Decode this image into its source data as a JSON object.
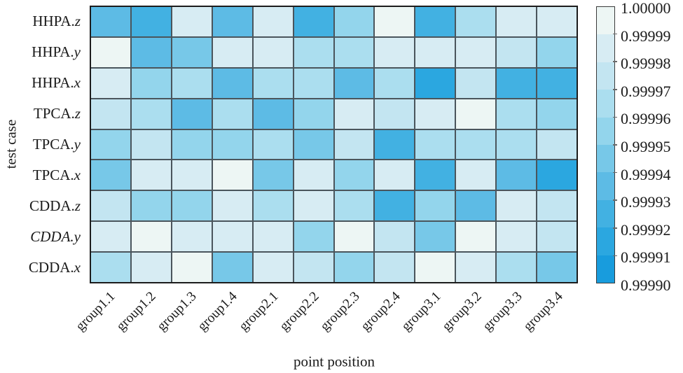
{
  "figure": {
    "x_axis_title": "point position",
    "y_axis_title": "test case"
  },
  "chart_data": {
    "type": "heatmap",
    "xlabel": "point position",
    "ylabel": "test case",
    "columns": [
      "group1.1",
      "group1.2",
      "group1.3",
      "group1.4",
      "group2.1",
      "group2.2",
      "group2.3",
      "group2.4",
      "group3.1",
      "group3.2",
      "group3.3",
      "group3.4"
    ],
    "rows": [
      {
        "label": "HHPA.z",
        "prefix": "HHPA.",
        "suffix": "z",
        "italic_full": false
      },
      {
        "label": "HHPA.y",
        "prefix": "HHPA.",
        "suffix": "y",
        "italic_full": false
      },
      {
        "label": "HHPA.x",
        "prefix": "HHPA.",
        "suffix": "x",
        "italic_full": false
      },
      {
        "label": "TPCA.z",
        "prefix": "TPCA.",
        "suffix": "z",
        "italic_full": false
      },
      {
        "label": "TPCA.y",
        "prefix": "TPCA.",
        "suffix": "y",
        "italic_full": false
      },
      {
        "label": "TPCA.x",
        "prefix": "TPCA.",
        "suffix": "x",
        "italic_full": false
      },
      {
        "label": "CDDA.z",
        "prefix": "CDDA.",
        "suffix": "z",
        "italic_full": false
      },
      {
        "label": "CDDA.y",
        "prefix": "CDDA.",
        "suffix": "y",
        "italic_full": true
      },
      {
        "label": "CDDA.x",
        "prefix": "CDDA.",
        "suffix": "x",
        "italic_full": false
      }
    ],
    "values": [
      [
        0.999935,
        0.999925,
        0.999985,
        0.999935,
        0.999985,
        0.999925,
        0.999955,
        0.999995,
        0.999925,
        0.999965,
        0.999985,
        0.999985
      ],
      [
        0.999995,
        0.999935,
        0.999945,
        0.999985,
        0.999985,
        0.999965,
        0.999965,
        0.999985,
        0.999985,
        0.999985,
        0.999975,
        0.999955
      ],
      [
        0.999985,
        0.999955,
        0.999965,
        0.999935,
        0.999965,
        0.999965,
        0.999935,
        0.999965,
        0.999915,
        0.999975,
        0.999925,
        0.999925
      ],
      [
        0.999975,
        0.999965,
        0.999935,
        0.999965,
        0.999935,
        0.999955,
        0.999985,
        0.999975,
        0.999985,
        0.999995,
        0.999965,
        0.999955
      ],
      [
        0.999955,
        0.999975,
        0.999955,
        0.999955,
        0.999965,
        0.999945,
        0.999975,
        0.999925,
        0.999965,
        0.999965,
        0.999965,
        0.999975
      ],
      [
        0.999945,
        0.999985,
        0.999985,
        0.999995,
        0.999945,
        0.999985,
        0.999955,
        0.999985,
        0.999925,
        0.999985,
        0.999935,
        0.999915
      ],
      [
        0.999975,
        0.999955,
        0.999955,
        0.999985,
        0.999965,
        0.999985,
        0.999965,
        0.999925,
        0.999955,
        0.999935,
        0.999985,
        0.999975
      ],
      [
        0.999985,
        0.999995,
        0.999985,
        0.999985,
        0.999985,
        0.999955,
        0.999995,
        0.999975,
        0.999945,
        0.999995,
        0.999985,
        0.999975
      ],
      [
        0.999965,
        0.999985,
        0.999995,
        0.999945,
        0.999985,
        0.999975,
        0.999955,
        0.999975,
        0.999995,
        0.999985,
        0.999965,
        0.999945
      ]
    ],
    "value_range": [
      0.9999,
      1.0
    ],
    "bin_size": 1e-05,
    "palette_high_to_low": [
      "#edf6f4",
      "#d7ecf3",
      "#c3e5f1",
      "#abdeef",
      "#93d5ec",
      "#77c8e8",
      "#5dbbe5",
      "#42b1e2",
      "#2ba7e0",
      "#189cdd"
    ],
    "colorbar_ticks": [
      "1.00000",
      "0.99999",
      "0.99998",
      "0.99997",
      "0.99996",
      "0.99995",
      "0.99994",
      "0.99993",
      "0.99992",
      "0.99991",
      "0.99990"
    ],
    "colorbar_position": "right",
    "grid_line_color": "#4a555c",
    "border_color": "#1c1c1c",
    "text_color": "#1a1a1a"
  }
}
